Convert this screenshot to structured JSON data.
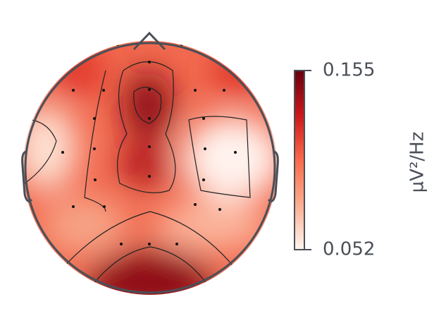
{
  "chart_data": {
    "type": "topomap",
    "colorbar": {
      "label": "µV²/Hz",
      "lim": [
        0.052,
        0.155
      ],
      "ticks": [
        0.052,
        0.155
      ],
      "colors": [
        "#fff5f0",
        "#fcae91",
        "#fb6a4a",
        "#cb181d",
        "#67000d"
      ]
    }
  }
}
